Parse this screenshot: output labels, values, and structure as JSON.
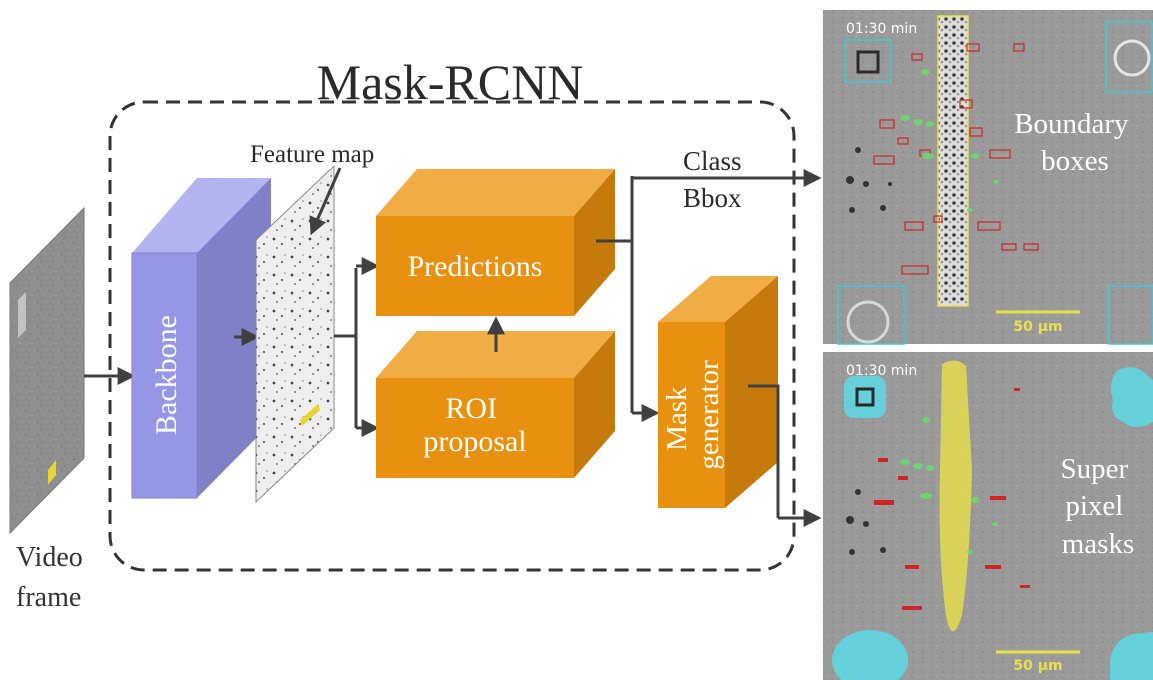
{
  "title": "Mask-RCNN",
  "input": {
    "label_line1": "Video",
    "label_line2": "frame",
    "scale_text": "50 μm"
  },
  "feature_map": {
    "label": "Feature map"
  },
  "blocks": {
    "backbone": {
      "label": "Backbone",
      "color": "#8f90e0"
    },
    "predictions": {
      "label": "Predictions",
      "color": "#e8900f"
    },
    "roi": {
      "label_line1": "ROI",
      "label_line2": "proposal",
      "color": "#e8900f"
    },
    "mask_generator": {
      "label_line1": "Mask",
      "label_line2": "generator",
      "color": "#e8900f"
    }
  },
  "outputs_label": {
    "line1": "Class",
    "line2": "Bbox"
  },
  "panels": {
    "top": {
      "time": "01:30 min",
      "label_line1": "Boundary",
      "label_line2": "boxes",
      "scale": "50 μm"
    },
    "bottom": {
      "time": "01:30 min",
      "label_line1": "Super",
      "label_line2": "pixel",
      "label_line3": "masks",
      "scale": "50 μm"
    }
  },
  "colors": {
    "arrow": "#404040",
    "panel_bg": "#8e8e8e",
    "cyan_box": "#3fc9d4",
    "red_box": "#d02525",
    "green_cell": "#6fd36f",
    "yellow": "#e8e04a",
    "mask_cyan": "#5fd6e0"
  }
}
